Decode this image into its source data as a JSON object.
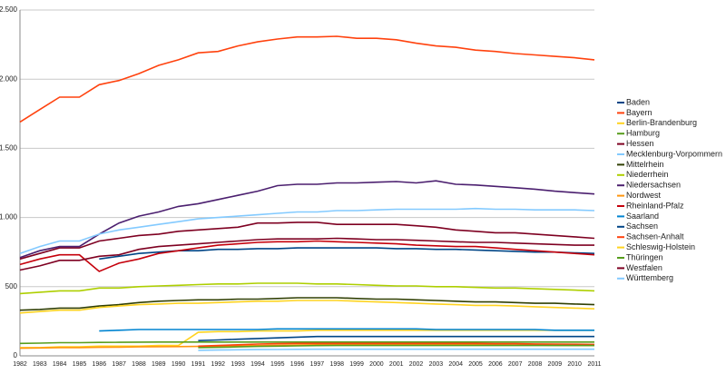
{
  "chart_data": {
    "type": "line",
    "categories": [
      "1982",
      "1983",
      "1984",
      "1985",
      "1986",
      "1987",
      "1988",
      "1989",
      "1990",
      "1991",
      "1992",
      "1993",
      "1994",
      "1995",
      "1996",
      "1997",
      "1998",
      "1999",
      "2000",
      "2001",
      "2002",
      "2003",
      "2004",
      "2005",
      "2006",
      "2007",
      "2008",
      "2009",
      "2010",
      "2011"
    ],
    "ylim": [
      0,
      2500
    ],
    "yticks": [
      0,
      500,
      {
        "value": 1000,
        "label": "1.000"
      },
      {
        "value": 1500,
        "label": "1.500"
      },
      {
        "value": 2000,
        "label": "2.000"
      },
      {
        "value": 2500,
        "label": "2.500"
      }
    ],
    "grid": true,
    "legend": "right",
    "series": [
      {
        "name": "Baden",
        "color": "#004586",
        "values": [
          null,
          null,
          null,
          null,
          700,
          720,
          740,
          750,
          760,
          760,
          770,
          770,
          775,
          775,
          780,
          780,
          780,
          780,
          780,
          775,
          775,
          770,
          770,
          765,
          760,
          755,
          750,
          750,
          745,
          740
        ]
      },
      {
        "name": "Bayern",
        "color": "#ff420e",
        "values": [
          1690,
          1780,
          1870,
          1870,
          1960,
          1990,
          2040,
          2100,
          2140,
          2190,
          2200,
          2240,
          2270,
          2290,
          2305,
          2305,
          2310,
          2295,
          2295,
          2285,
          2260,
          2240,
          2230,
          2210,
          2200,
          2185,
          2175,
          2165,
          2155,
          2140
        ]
      },
      {
        "name": "Berlin-Brandenburg",
        "color": "#ffd320",
        "values": [
          60,
          60,
          65,
          65,
          70,
          70,
          70,
          75,
          75,
          170,
          175,
          175,
          180,
          180,
          180,
          185,
          185,
          185,
          185,
          185,
          185,
          185,
          185,
          185,
          185,
          185,
          185,
          185,
          185,
          185
        ]
      },
      {
        "name": "Hamburg",
        "color": "#579d1c",
        "values": [
          90,
          92,
          95,
          95,
          97,
          98,
          99,
          100,
          100,
          100,
          100,
          100,
          100,
          100,
          100,
          100,
          100,
          100,
          100,
          100,
          100,
          100,
          100,
          100,
          100,
          100,
          100,
          100,
          100,
          100
        ]
      },
      {
        "name": "Hessen",
        "color": "#7e0021",
        "values": [
          700,
          740,
          780,
          780,
          830,
          850,
          870,
          880,
          900,
          910,
          920,
          930,
          960,
          960,
          965,
          965,
          950,
          950,
          950,
          950,
          940,
          930,
          910,
          900,
          890,
          890,
          880,
          870,
          860,
          850
        ]
      },
      {
        "name": "Mecklenburg-Vorpommern",
        "color": "#83caff",
        "values": [
          null,
          null,
          null,
          null,
          null,
          null,
          null,
          null,
          null,
          40,
          42,
          44,
          45,
          46,
          47,
          48,
          48,
          48,
          48,
          48,
          48,
          48,
          48,
          48,
          48,
          48,
          48,
          48,
          48,
          48
        ]
      },
      {
        "name": "Mittelrhein",
        "color": "#314004",
        "values": [
          330,
          335,
          345,
          345,
          360,
          370,
          385,
          395,
          400,
          405,
          405,
          410,
          410,
          415,
          420,
          420,
          420,
          415,
          410,
          410,
          405,
          400,
          395,
          390,
          390,
          385,
          380,
          380,
          375,
          370
        ]
      },
      {
        "name": "Niederrhein",
        "color": "#aecf00",
        "values": [
          450,
          460,
          470,
          470,
          490,
          490,
          500,
          505,
          510,
          515,
          520,
          520,
          525,
          525,
          525,
          520,
          520,
          515,
          510,
          505,
          505,
          500,
          500,
          495,
          490,
          490,
          485,
          480,
          475,
          470
        ]
      },
      {
        "name": "Niedersachsen",
        "color": "#4b1f6f",
        "values": [
          710,
          760,
          790,
          790,
          880,
          960,
          1010,
          1040,
          1080,
          1100,
          1130,
          1160,
          1190,
          1230,
          1240,
          1240,
          1250,
          1250,
          1255,
          1260,
          1250,
          1265,
          1240,
          1235,
          1225,
          1215,
          1205,
          1190,
          1180,
          1170
        ]
      },
      {
        "name": "Nordwest",
        "color": "#ff950e",
        "values": [
          55,
          57,
          60,
          60,
          62,
          63,
          65,
          66,
          67,
          68,
          70,
          72,
          74,
          76,
          78,
          80,
          80,
          80,
          80,
          80,
          80,
          80,
          80,
          80,
          80,
          78,
          78,
          76,
          75,
          74
        ]
      },
      {
        "name": "Rheinland-Pfalz",
        "color": "#c5000b",
        "values": [
          660,
          700,
          730,
          730,
          610,
          670,
          700,
          740,
          760,
          780,
          800,
          810,
          820,
          825,
          825,
          830,
          825,
          820,
          815,
          810,
          800,
          795,
          790,
          790,
          780,
          770,
          760,
          750,
          740,
          730
        ]
      },
      {
        "name": "Saarland",
        "color": "#0084d1",
        "values": [
          null,
          null,
          null,
          null,
          180,
          185,
          190,
          190,
          190,
          190,
          190,
          190,
          190,
          195,
          195,
          195,
          195,
          195,
          195,
          195,
          195,
          190,
          190,
          190,
          190,
          190,
          190,
          185,
          185,
          185
        ]
      },
      {
        "name": "Sachsen",
        "color": "#004586",
        "values": [
          null,
          null,
          null,
          null,
          null,
          null,
          null,
          null,
          null,
          110,
          115,
          120,
          125,
          130,
          135,
          140,
          140,
          140,
          140,
          140,
          140,
          140,
          140,
          140,
          140,
          140,
          140,
          140,
          140,
          140
        ]
      },
      {
        "name": "Sachsen-Anhalt",
        "color": "#ff420e",
        "values": [
          null,
          null,
          null,
          null,
          null,
          null,
          null,
          null,
          null,
          70,
          75,
          80,
          85,
          88,
          90,
          90,
          90,
          90,
          90,
          90,
          90,
          90,
          90,
          90,
          88,
          88,
          86,
          85,
          84,
          83
        ]
      },
      {
        "name": "Schleswig-Holstein",
        "color": "#ffd320",
        "values": [
          310,
          320,
          330,
          330,
          350,
          360,
          370,
          375,
          380,
          380,
          385,
          390,
          395,
          395,
          400,
          400,
          400,
          395,
          390,
          385,
          380,
          375,
          370,
          365,
          365,
          360,
          355,
          350,
          345,
          340
        ]
      },
      {
        "name": "Thüringen",
        "color": "#579d1c",
        "values": [
          null,
          null,
          null,
          null,
          null,
          null,
          null,
          null,
          null,
          60,
          62,
          65,
          68,
          70,
          72,
          74,
          75,
          75,
          75,
          75,
          75,
          75,
          75,
          75,
          75,
          75,
          75,
          75,
          75,
          75
        ]
      },
      {
        "name": "Westfalen",
        "color": "#7e0021",
        "values": [
          620,
          650,
          690,
          690,
          720,
          730,
          770,
          790,
          800,
          810,
          820,
          830,
          840,
          845,
          845,
          845,
          850,
          845,
          840,
          840,
          835,
          830,
          825,
          820,
          820,
          815,
          810,
          805,
          800,
          800
        ]
      },
      {
        "name": "Württemberg",
        "color": "#83caff",
        "values": [
          740,
          790,
          830,
          830,
          880,
          910,
          930,
          950,
          970,
          990,
          1000,
          1010,
          1020,
          1030,
          1040,
          1040,
          1050,
          1050,
          1055,
          1060,
          1060,
          1060,
          1060,
          1065,
          1060,
          1060,
          1055,
          1055,
          1055,
          1050
        ]
      }
    ]
  }
}
